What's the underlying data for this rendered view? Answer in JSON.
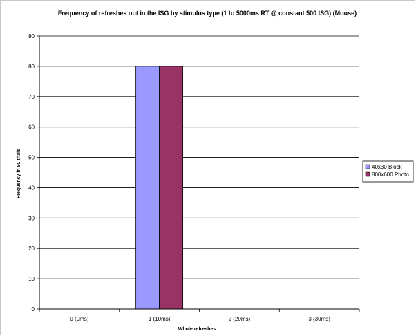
{
  "chart_data": {
    "type": "bar",
    "title": "Frequency of refreshes out in the ISG by stimulus type (1 to 5000ms RT @ constant 500 ISG) (Mouse)",
    "xlabel": "Whole refreshes",
    "ylabel": "Frequency in 80 trials",
    "categories": [
      "0 (0ms)",
      "1 (10ms)",
      "2 (20ms)",
      "3 (30ms)"
    ],
    "series": [
      {
        "name": "40x30 Block",
        "values": [
          0,
          80,
          0,
          0
        ],
        "color": "#9999ff"
      },
      {
        "name": "800x600 Photo",
        "values": [
          0,
          80,
          0,
          0
        ],
        "color": "#993366"
      }
    ],
    "ylim": [
      0,
      90
    ],
    "yticks": [
      0,
      10,
      20,
      30,
      40,
      50,
      60,
      70,
      80,
      90
    ],
    "grid": true,
    "legend": "right"
  }
}
